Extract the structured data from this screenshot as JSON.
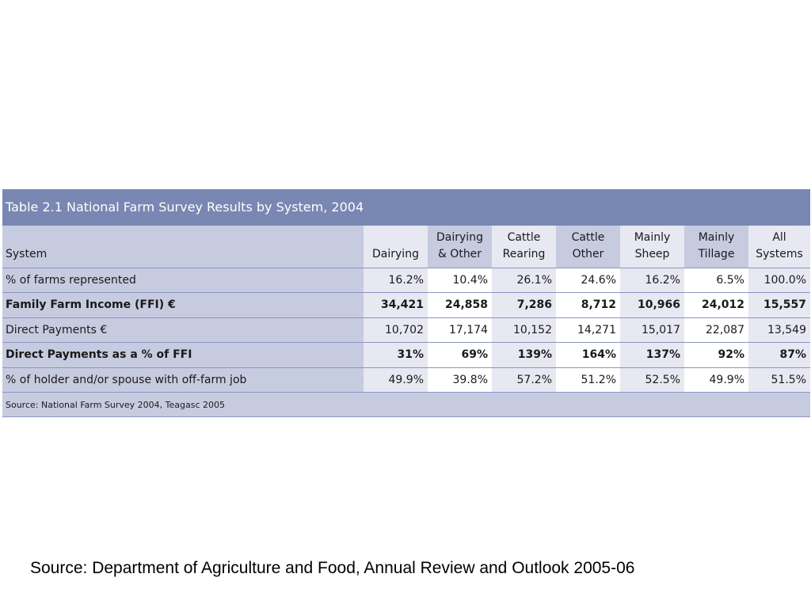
{
  "table": {
    "title": "Table 2.1  National Farm Survey Results by System, 2004",
    "header": {
      "label": "System",
      "columns": [
        {
          "line1": "",
          "line2": "Dairying"
        },
        {
          "line1": "Dairying",
          "line2": "& Other"
        },
        {
          "line1": "Cattle",
          "line2": "Rearing"
        },
        {
          "line1": "Cattle",
          "line2": "Other"
        },
        {
          "line1": "Mainly",
          "line2": "Sheep"
        },
        {
          "line1": "Mainly",
          "line2": "Tillage"
        },
        {
          "line1": "All",
          "line2": "Systems"
        }
      ]
    },
    "rows": [
      {
        "label": "% of farms represented",
        "bold": false,
        "values": [
          "16.2%",
          "10.4%",
          "26.1%",
          "24.6%",
          "16.2%",
          "6.5%",
          "100.0%"
        ]
      },
      {
        "label": "Family Farm Income (FFI) €",
        "bold": true,
        "values": [
          "34,421",
          "24,858",
          "7,286",
          "8,712",
          "10,966",
          "24,012",
          "15,557"
        ]
      },
      {
        "label": "Direct Payments €",
        "bold": false,
        "values": [
          "10,702",
          "17,174",
          "10,152",
          "14,271",
          "15,017",
          "22,087",
          "13,549"
        ]
      },
      {
        "label": "Direct Payments as a % of FFI",
        "bold": true,
        "values": [
          "31%",
          "69%",
          "139%",
          "164%",
          "137%",
          "92%",
          "87%"
        ]
      },
      {
        "label": "% of holder and/or spouse with off-farm job",
        "bold": false,
        "values": [
          "49.9%",
          "39.8%",
          "57.2%",
          "51.2%",
          "52.5%",
          "49.9%",
          "51.5%"
        ]
      }
    ],
    "source": "Source: National Farm Survey 2004, Teagasc 2005"
  },
  "footer": {
    "source": "Source: Department of Agriculture and Food, Annual Review and Outlook 2005-06"
  },
  "colors": {
    "title_bar": "#7987b3",
    "label_bg": "#c7cbe0",
    "alt_col_bg": "#e7e8f2",
    "rule": "#8a95c0"
  }
}
